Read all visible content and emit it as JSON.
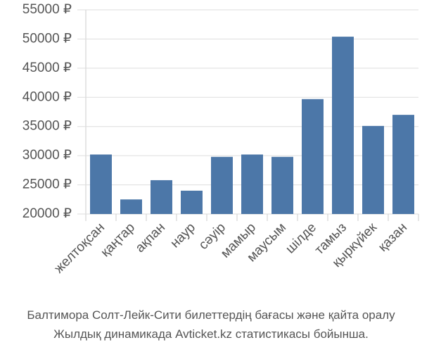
{
  "chart_data": {
    "type": "bar",
    "categories": [
      "желтоқсан",
      "қаңтар",
      "ақпан",
      "наур",
      "сәуір",
      "мамыр",
      "маусым",
      "шілде",
      "тамыз",
      "қыркүйек",
      "қазан"
    ],
    "values": [
      30200,
      22500,
      25800,
      24000,
      29800,
      30200,
      29800,
      39700,
      50400,
      35100,
      37000
    ],
    "color": "#4c77a8",
    "ylim": [
      20000,
      55000
    ],
    "yticks": [
      {
        "value": 20000,
        "label": "20000 ₽"
      },
      {
        "value": 25000,
        "label": "25000 ₽"
      },
      {
        "value": 30000,
        "label": "30000 ₽"
      },
      {
        "value": 35000,
        "label": "35000 ₽"
      },
      {
        "value": 40000,
        "label": "40000 ₽"
      },
      {
        "value": 45000,
        "label": "45000 ₽"
      },
      {
        "value": 50000,
        "label": "50000 ₽"
      },
      {
        "value": 55000,
        "label": "55000 ₽"
      }
    ],
    "grid": true,
    "caption": [
      "Балтимора Солт-Лейк-Сити билеттердің бағасы және қайта оралу",
      "Жылдық динамикада Avticket.kz статистикасы бойынша."
    ]
  }
}
